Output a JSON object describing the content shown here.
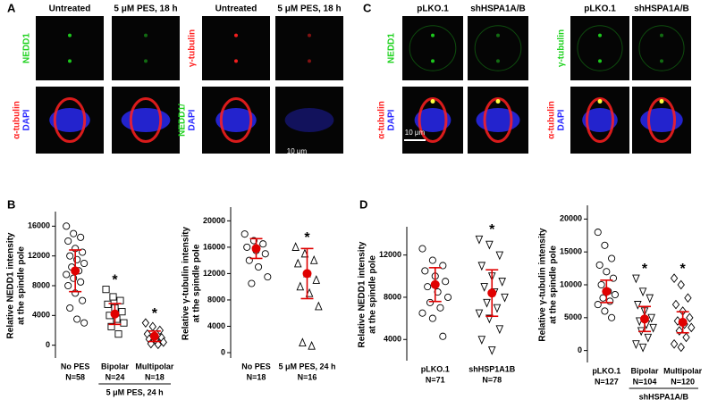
{
  "figure": {
    "panels": [
      {
        "letter": "A",
        "groups": [
          {
            "columns": [
              "Untreated",
              "5 μM PES, 18 h"
            ],
            "row_labels": [
              [
                {
                  "text": "NEDD1",
                  "color": "#1fd21f"
                }
              ],
              [
                {
                  "text": "α-tubulin",
                  "color": "#ff2020"
                },
                {
                  "text": "DAPI",
                  "color": "#2a2aff"
                }
              ]
            ]
          },
          {
            "columns": [
              "Untreated",
              "5 μM PES, 18 h"
            ],
            "row_labels": [
              [
                {
                  "text": "γ-tubulin",
                  "color": "#ff2020"
                }
              ],
              [
                {
                  "text": "NEDD1/",
                  "color": "#1fd21f"
                },
                {
                  "text": "DAPI",
                  "color": "#2a2aff"
                }
              ]
            ]
          }
        ],
        "scale_bar": "10 μm"
      },
      {
        "letter": "C",
        "groups": [
          {
            "columns": [
              "pLKO.1",
              "shHSPA1A/B"
            ],
            "row_labels": [
              [
                {
                  "text": "NEDD1",
                  "color": "#1fd21f"
                }
              ],
              [
                {
                  "text": "α-tubulin",
                  "color": "#ff2020"
                },
                {
                  "text": "DAPI",
                  "color": "#2a2aff"
                }
              ]
            ]
          },
          {
            "columns": [
              "pLKO.1",
              "shHSPA1A/B"
            ],
            "row_labels": [
              [
                {
                  "text": "γ-tubulin",
                  "color": "#1fd21f"
                }
              ],
              [
                {
                  "text": "α-tubulin",
                  "color": "#ff2020"
                },
                {
                  "text": "DAPI",
                  "color": "#2a2aff"
                }
              ]
            ]
          }
        ],
        "scale_bar": "10 μm"
      }
    ]
  },
  "chart_data": [
    {
      "type": "scatter",
      "panel": "B",
      "ylabel": [
        "Relative NEDD1 intensity",
        "at the spindle pole"
      ],
      "ylim": [
        -1000,
        17000
      ],
      "yticks": [
        0,
        4000,
        8000,
        12000,
        16000
      ],
      "mean_color": "#e00000",
      "groups": [
        {
          "name": "No PES",
          "n_label": "N=58",
          "marker": "circle",
          "mean": 10000,
          "sd": 2800,
          "points": [
            16000,
            15000,
            14500,
            14000,
            13000,
            12500,
            12000,
            11500,
            11000,
            10500,
            10000,
            9500,
            9000,
            8500,
            8000,
            7000,
            6000,
            5000,
            3500,
            3000
          ]
        },
        {
          "name": "Bipolar",
          "n_label": "N=24",
          "marker": "square",
          "mean": 4200,
          "sd": 1400,
          "annotation": "*",
          "points": [
            7500,
            6500,
            6000,
            5500,
            5000,
            4500,
            4000,
            3500,
            3000,
            2500,
            1500
          ]
        },
        {
          "name": "Multipolar",
          "n_label": "N=18",
          "marker": "diamond",
          "mean": 1200,
          "sd": 700,
          "annotation": "*",
          "points": [
            3000,
            2500,
            2000,
            1500,
            1200,
            1000,
            800,
            600,
            400,
            200,
            100
          ]
        }
      ],
      "bracket": {
        "label": "5 μM PES, 24 h",
        "groups": [
          1,
          2
        ]
      }
    },
    {
      "type": "scatter",
      "ylabel": [
        "Relative γ-tubulin intensity",
        "at the spindle pole"
      ],
      "ylim": [
        0,
        21000
      ],
      "yticks": [
        0,
        4000,
        8000,
        12000,
        16000,
        20000
      ],
      "mean_color": "#e00000",
      "groups": [
        {
          "name": "No PES",
          "n_label": "N=18",
          "marker": "circle",
          "mean": 15800,
          "sd": 1500,
          "points": [
            18000,
            17000,
            16500,
            16000,
            15500,
            15000,
            14000,
            13000,
            11500,
            10500
          ]
        },
        {
          "name": "5 μM PES, 24 h",
          "n_label": "N=16",
          "marker": "triangle",
          "mean": 12000,
          "sd": 3800,
          "annotation": "*",
          "points": [
            16000,
            15000,
            14000,
            13500,
            12000,
            11000,
            10000,
            9000,
            7000,
            1500,
            1000
          ]
        }
      ]
    },
    {
      "type": "scatter",
      "panel": "D",
      "ylabel": [
        "Relative NEDD1 intensity",
        "at the spindle pole"
      ],
      "ylim": [
        2500,
        14000
      ],
      "yticks": [
        4000,
        8000,
        12000
      ],
      "mean_color": "#e00000",
      "groups": [
        {
          "name": "pLKO.1",
          "n_label": "N=71",
          "marker": "circle",
          "mean": 9200,
          "sd": 1600,
          "points": [
            12600,
            11500,
            11000,
            10500,
            10000,
            9500,
            9000,
            8500,
            8000,
            7500,
            7000,
            6500,
            6000,
            4300
          ]
        },
        {
          "name": "shHSP1A1B",
          "n_label": "N=78",
          "marker": "triangle-down",
          "mean": 8400,
          "sd": 2200,
          "annotation": "*",
          "points": [
            13500,
            13000,
            12000,
            11000,
            10000,
            9500,
            9000,
            8500,
            8000,
            7500,
            7000,
            6500,
            6000,
            5000,
            4000,
            3000
          ]
        }
      ]
    },
    {
      "type": "scatter",
      "ylabel": [
        "Relative γ-tubulin intensity",
        "at the spindle pole"
      ],
      "ylim": [
        -1000,
        21000
      ],
      "yticks": [
        0,
        5000,
        10000,
        15000,
        20000
      ],
      "mean_color": "#e00000",
      "groups": [
        {
          "name": "pLKO.1",
          "n_label": "N=127",
          "marker": "circle",
          "mean": 9000,
          "sd": 1700,
          "points": [
            18000,
            16000,
            14000,
            13000,
            12000,
            11000,
            10000,
            9000,
            8500,
            8000,
            7500,
            7000,
            6000,
            5000
          ]
        },
        {
          "name": "Bipolar",
          "n_label": "N=104",
          "marker": "triangle-down",
          "mean": 4800,
          "sd": 1900,
          "annotation": "*",
          "points": [
            11000,
            9000,
            8000,
            7000,
            6000,
            5000,
            4500,
            4000,
            3500,
            3000,
            2000,
            1000,
            500
          ]
        },
        {
          "name": "Multipolar",
          "n_label": "N=120",
          "marker": "diamond",
          "mean": 4300,
          "sd": 1600,
          "annotation": "*",
          "points": [
            11000,
            10000,
            8000,
            7000,
            6000,
            5000,
            4500,
            4000,
            3500,
            3000,
            2000,
            1000,
            500
          ]
        }
      ],
      "bracket": {
        "label": "shHSPA1A/B",
        "groups": [
          1,
          2
        ]
      }
    }
  ]
}
